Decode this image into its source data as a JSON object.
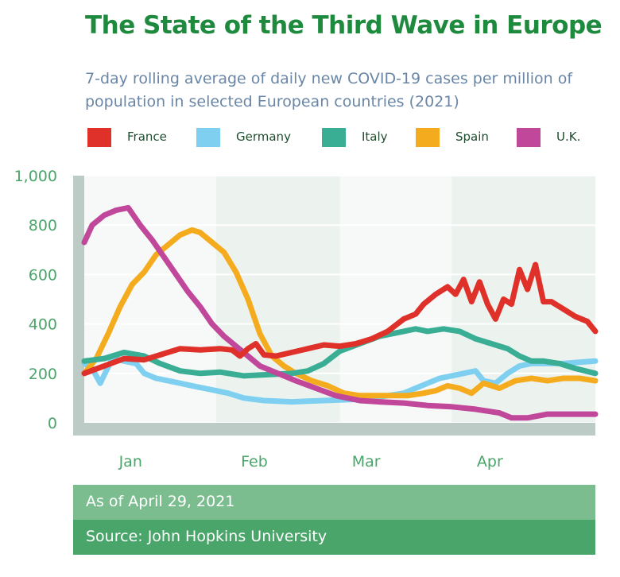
{
  "header": {
    "title": "The State of the Third Wave in Europe",
    "subtitle": "7-day rolling average of daily new COVID-19 cases per million of population in selected European countries (2021)"
  },
  "legend": [
    {
      "label": "France",
      "color": "#e0302a"
    },
    {
      "label": "Germany",
      "color": "#7fd0f0"
    },
    {
      "label": "Italy",
      "color": "#3aae94"
    },
    {
      "label": "Spain",
      "color": "#f4ac1e"
    },
    {
      "label": "U.K.",
      "color": "#c0479a"
    }
  ],
  "footer": {
    "as_of": "As of April 29, 2021",
    "source": "Source: John Hopkins University"
  },
  "chart_data": {
    "type": "line",
    "title": "The State of the Third Wave in Europe",
    "subtitle": "7-day rolling average of daily new COVID-19 cases per million of population in selected European countries (2021)",
    "xlabel": "",
    "ylabel": "",
    "x_ticks": [
      "Jan",
      "Feb",
      "Mar",
      "Apr"
    ],
    "x_domain": [
      "2020-12-22",
      "2021-04-29"
    ],
    "y_ticks": [
      0,
      200,
      400,
      600,
      800,
      "1,000"
    ],
    "ylim": [
      0,
      1000
    ],
    "grid": true,
    "legend_position": "top",
    "series": [
      {
        "name": "France",
        "color": "#e0302a",
        "points": [
          [
            "2020-12-22",
            200
          ],
          [
            "2020-12-27",
            230
          ],
          [
            "2021-01-01",
            260
          ],
          [
            "2021-01-06",
            255
          ],
          [
            "2021-01-10",
            275
          ],
          [
            "2021-01-15",
            300
          ],
          [
            "2021-01-20",
            295
          ],
          [
            "2021-01-25",
            300
          ],
          [
            "2021-01-28",
            295
          ],
          [
            "2021-01-30",
            270
          ],
          [
            "2021-02-01",
            300
          ],
          [
            "2021-02-03",
            320
          ],
          [
            "2021-02-05",
            275
          ],
          [
            "2021-02-08",
            270
          ],
          [
            "2021-02-12",
            285
          ],
          [
            "2021-02-16",
            300
          ],
          [
            "2021-02-20",
            315
          ],
          [
            "2021-02-24",
            310
          ],
          [
            "2021-02-28",
            320
          ],
          [
            "2021-03-04",
            340
          ],
          [
            "2021-03-08",
            370
          ],
          [
            "2021-03-12",
            420
          ],
          [
            "2021-03-15",
            440
          ],
          [
            "2021-03-17",
            480
          ],
          [
            "2021-03-20",
            520
          ],
          [
            "2021-03-23",
            550
          ],
          [
            "2021-03-25",
            520
          ],
          [
            "2021-03-27",
            580
          ],
          [
            "2021-03-29",
            490
          ],
          [
            "2021-03-31",
            570
          ],
          [
            "2021-04-02",
            480
          ],
          [
            "2021-04-04",
            420
          ],
          [
            "2021-04-06",
            500
          ],
          [
            "2021-04-08",
            480
          ],
          [
            "2021-04-10",
            620
          ],
          [
            "2021-04-12",
            540
          ],
          [
            "2021-04-14",
            640
          ],
          [
            "2021-04-16",
            490
          ],
          [
            "2021-04-18",
            490
          ],
          [
            "2021-04-21",
            460
          ],
          [
            "2021-04-24",
            430
          ],
          [
            "2021-04-27",
            410
          ],
          [
            "2021-04-29",
            370
          ]
        ]
      },
      {
        "name": "Germany",
        "color": "#7fd0f0",
        "points": [
          [
            "2020-12-22",
            240
          ],
          [
            "2020-12-24",
            220
          ],
          [
            "2020-12-26",
            160
          ],
          [
            "2020-12-29",
            260
          ],
          [
            "2021-01-01",
            250
          ],
          [
            "2021-01-04",
            240
          ],
          [
            "2021-01-06",
            200
          ],
          [
            "2021-01-09",
            180
          ],
          [
            "2021-01-12",
            170
          ],
          [
            "2021-01-15",
            160
          ],
          [
            "2021-01-18",
            150
          ],
          [
            "2021-01-21",
            140
          ],
          [
            "2021-01-24",
            130
          ],
          [
            "2021-01-27",
            120
          ],
          [
            "2021-01-31",
            100
          ],
          [
            "2021-02-05",
            90
          ],
          [
            "2021-02-12",
            85
          ],
          [
            "2021-02-20",
            90
          ],
          [
            "2021-02-28",
            95
          ],
          [
            "2021-03-04",
            100
          ],
          [
            "2021-03-08",
            110
          ],
          [
            "2021-03-12",
            120
          ],
          [
            "2021-03-15",
            140
          ],
          [
            "2021-03-18",
            160
          ],
          [
            "2021-03-21",
            180
          ],
          [
            "2021-03-24",
            190
          ],
          [
            "2021-03-27",
            200
          ],
          [
            "2021-03-30",
            210
          ],
          [
            "2021-04-01",
            170
          ],
          [
            "2021-04-04",
            160
          ],
          [
            "2021-04-07",
            200
          ],
          [
            "2021-04-10",
            230
          ],
          [
            "2021-04-13",
            240
          ],
          [
            "2021-04-17",
            240
          ],
          [
            "2021-04-21",
            240
          ],
          [
            "2021-04-25",
            245
          ],
          [
            "2021-04-29",
            250
          ]
        ]
      },
      {
        "name": "Italy",
        "color": "#3aae94",
        "points": [
          [
            "2020-12-22",
            250
          ],
          [
            "2020-12-27",
            260
          ],
          [
            "2021-01-01",
            285
          ],
          [
            "2021-01-06",
            270
          ],
          [
            "2021-01-10",
            240
          ],
          [
            "2021-01-15",
            210
          ],
          [
            "2021-01-20",
            200
          ],
          [
            "2021-01-25",
            205
          ],
          [
            "2021-01-31",
            190
          ],
          [
            "2021-02-06",
            195
          ],
          [
            "2021-02-12",
            200
          ],
          [
            "2021-02-16",
            210
          ],
          [
            "2021-02-20",
            240
          ],
          [
            "2021-02-24",
            290
          ],
          [
            "2021-03-01",
            320
          ],
          [
            "2021-03-06",
            350
          ],
          [
            "2021-03-12",
            370
          ],
          [
            "2021-03-15",
            380
          ],
          [
            "2021-03-18",
            370
          ],
          [
            "2021-03-22",
            380
          ],
          [
            "2021-03-26",
            370
          ],
          [
            "2021-03-30",
            340
          ],
          [
            "2021-04-03",
            320
          ],
          [
            "2021-04-07",
            300
          ],
          [
            "2021-04-10",
            270
          ],
          [
            "2021-04-13",
            250
          ],
          [
            "2021-04-16",
            250
          ],
          [
            "2021-04-20",
            240
          ],
          [
            "2021-04-24",
            220
          ],
          [
            "2021-04-29",
            200
          ]
        ]
      },
      {
        "name": "Spain",
        "color": "#f4ac1e",
        "points": [
          [
            "2020-12-22",
            200
          ],
          [
            "2020-12-25",
            260
          ],
          [
            "2020-12-28",
            360
          ],
          [
            "2020-12-31",
            470
          ],
          [
            "2021-01-03",
            560
          ],
          [
            "2021-01-06",
            610
          ],
          [
            "2021-01-09",
            680
          ],
          [
            "2021-01-12",
            720
          ],
          [
            "2021-01-15",
            760
          ],
          [
            "2021-01-18",
            780
          ],
          [
            "2021-01-20",
            770
          ],
          [
            "2021-01-23",
            730
          ],
          [
            "2021-01-26",
            690
          ],
          [
            "2021-01-29",
            610
          ],
          [
            "2021-02-01",
            500
          ],
          [
            "2021-02-04",
            360
          ],
          [
            "2021-02-07",
            270
          ],
          [
            "2021-02-10",
            230
          ],
          [
            "2021-02-13",
            200
          ],
          [
            "2021-02-17",
            170
          ],
          [
            "2021-02-21",
            150
          ],
          [
            "2021-02-25",
            120
          ],
          [
            "2021-03-01",
            110
          ],
          [
            "2021-03-05",
            110
          ],
          [
            "2021-03-09",
            110
          ],
          [
            "2021-03-13",
            110
          ],
          [
            "2021-03-17",
            120
          ],
          [
            "2021-03-20",
            130
          ],
          [
            "2021-03-23",
            150
          ],
          [
            "2021-03-26",
            140
          ],
          [
            "2021-03-29",
            120
          ],
          [
            "2021-04-01",
            160
          ],
          [
            "2021-04-05",
            140
          ],
          [
            "2021-04-09",
            170
          ],
          [
            "2021-04-13",
            180
          ],
          [
            "2021-04-17",
            170
          ],
          [
            "2021-04-21",
            180
          ],
          [
            "2021-04-25",
            180
          ],
          [
            "2021-04-29",
            170
          ]
        ]
      },
      {
        "name": "U.K.",
        "color": "#c0479a",
        "points": [
          [
            "2020-12-22",
            730
          ],
          [
            "2020-12-24",
            800
          ],
          [
            "2020-12-27",
            840
          ],
          [
            "2020-12-30",
            860
          ],
          [
            "2021-01-02",
            870
          ],
          [
            "2021-01-05",
            800
          ],
          [
            "2021-01-08",
            740
          ],
          [
            "2021-01-11",
            670
          ],
          [
            "2021-01-14",
            600
          ],
          [
            "2021-01-17",
            530
          ],
          [
            "2021-01-20",
            470
          ],
          [
            "2021-01-23",
            400
          ],
          [
            "2021-01-26",
            350
          ],
          [
            "2021-01-29",
            310
          ],
          [
            "2021-02-01",
            270
          ],
          [
            "2021-02-04",
            230
          ],
          [
            "2021-02-07",
            210
          ],
          [
            "2021-02-10",
            190
          ],
          [
            "2021-02-13",
            170
          ],
          [
            "2021-02-18",
            140
          ],
          [
            "2021-02-23",
            110
          ],
          [
            "2021-03-01",
            90
          ],
          [
            "2021-03-06",
            85
          ],
          [
            "2021-03-12",
            80
          ],
          [
            "2021-03-18",
            70
          ],
          [
            "2021-03-24",
            65
          ],
          [
            "2021-03-30",
            55
          ],
          [
            "2021-04-05",
            40
          ],
          [
            "2021-04-08",
            20
          ],
          [
            "2021-04-12",
            20
          ],
          [
            "2021-04-17",
            35
          ],
          [
            "2021-04-22",
            35
          ],
          [
            "2021-04-29",
            35
          ]
        ]
      }
    ]
  }
}
